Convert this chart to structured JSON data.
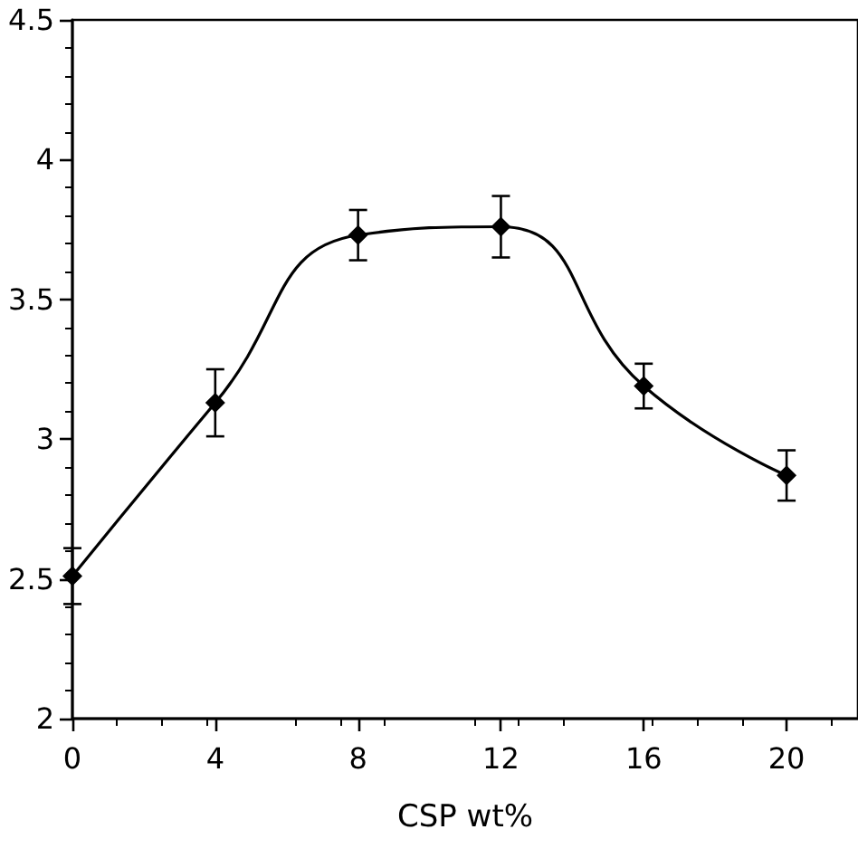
{
  "chart_data": {
    "type": "line",
    "xlabel": "CSP wt%",
    "x": [
      0,
      4,
      8,
      12,
      16,
      20
    ],
    "series": [
      {
        "color": "#000000",
        "values": [
          2.51,
          3.13,
          3.73,
          3.76,
          3.19,
          2.87
        ],
        "errors": [
          0.1,
          0.12,
          0.09,
          0.11,
          0.08,
          0.09
        ]
      }
    ],
    "xlim": [
      0,
      22
    ],
    "xticks": [
      0,
      4,
      8,
      12,
      16,
      20
    ],
    "ylim": [
      2,
      4.5
    ],
    "yticks": [
      2,
      2.5,
      3,
      3.5,
      4,
      4.5
    ],
    "grid": false,
    "marker": "diamond",
    "line_style": "solid"
  }
}
